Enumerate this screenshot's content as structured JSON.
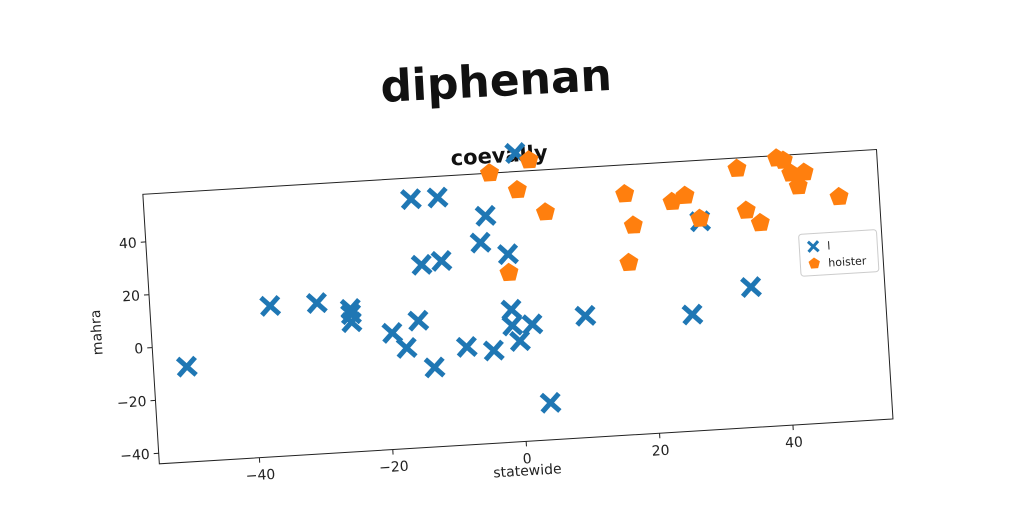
{
  "suptitle": "diphenan",
  "chart_data": {
    "type": "scatter",
    "title": "coevally",
    "xlabel": "statewide",
    "ylabel": "mahra",
    "xlim": [
      -55,
      55
    ],
    "ylim": [
      -44,
      58
    ],
    "xticks": [
      -40,
      -20,
      0,
      20,
      40
    ],
    "yticks": [
      -40,
      -20,
      0,
      20,
      40
    ],
    "grid": false,
    "legend_position": "right",
    "series": [
      {
        "name": "l",
        "color": "#1f77b4",
        "marker": "x",
        "points": [
          [
            -50,
            -8
          ],
          [
            -37,
            13
          ],
          [
            -30,
            13
          ],
          [
            -25,
            10
          ],
          [
            -25,
            8
          ],
          [
            -25,
            5
          ],
          [
            -19,
            0
          ],
          [
            -17,
            -6
          ],
          [
            -15,
            50
          ],
          [
            -15,
            4
          ],
          [
            -14,
            25
          ],
          [
            -13,
            -14
          ],
          [
            -11,
            50
          ],
          [
            -11,
            26
          ],
          [
            -8,
            -7
          ],
          [
            -5,
            32
          ],
          [
            -4,
            42
          ],
          [
            -4,
            -9
          ],
          [
            -1,
            27
          ],
          [
            -1,
            6
          ],
          [
            -1,
            0
          ],
          [
            0,
            -6
          ],
          [
            1,
            65
          ],
          [
            2,
            0
          ],
          [
            4,
            -30
          ],
          [
            10,
            2
          ],
          [
            26,
            0
          ],
          [
            28,
            35
          ],
          [
            35,
            9
          ]
        ]
      },
      {
        "name": "hoister",
        "color": "#ff7f0e",
        "marker": "pentagon",
        "points": [
          [
            -3,
            58
          ],
          [
            -1,
            20
          ],
          [
            1,
            51
          ],
          [
            3,
            62
          ],
          [
            5,
            42
          ],
          [
            17,
            47
          ],
          [
            17,
            21
          ],
          [
            18,
            35
          ],
          [
            24,
            43
          ],
          [
            26,
            45
          ],
          [
            28,
            36
          ],
          [
            34,
            54
          ],
          [
            35,
            38
          ],
          [
            37,
            33
          ],
          [
            40,
            57
          ],
          [
            41,
            56
          ],
          [
            42,
            51
          ],
          [
            43,
            46
          ],
          [
            44,
            51
          ],
          [
            49,
            41
          ]
        ]
      }
    ]
  }
}
